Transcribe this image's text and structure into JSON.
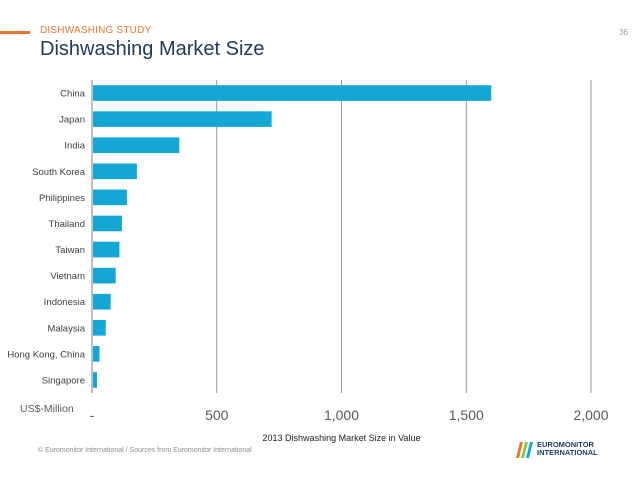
{
  "header": {
    "kicker": "DISHWASHING STUDY",
    "title": "Dishwashing Market Size",
    "page_number": "36"
  },
  "unit_label": "US$-Million",
  "footer": {
    "source": "© Euromonitor International / Sources from Euromonitor International"
  },
  "logo": {
    "line1": "EUROMONITOR",
    "line2": "INTERNATIONAL"
  },
  "colors": {
    "bar": "#14a7d6",
    "accent": "#e8772e",
    "title": "#1f3a5c",
    "grid": "#7f7f7f"
  },
  "chart_data": {
    "type": "bar",
    "orientation": "horizontal",
    "categories": [
      "China",
      "Japan",
      "India",
      "South Korea",
      "Philippines",
      "Thailand",
      "Taiwan",
      "Vietnam",
      "Indonesia",
      "Malaysia",
      "Hong Kong, China",
      "Singapore"
    ],
    "values": [
      1600,
      720,
      350,
      180,
      140,
      120,
      110,
      95,
      75,
      55,
      30,
      20
    ],
    "xlabel": "2013 Dishwashing Market Size in Value",
    "xlim": [
      0,
      2000
    ],
    "xticks": [
      0,
      500,
      1000,
      1500,
      2000
    ],
    "xtick_labels": [
      "-",
      "500",
      "1,000",
      "1,500",
      "2,000"
    ],
    "grid": "vertical"
  }
}
